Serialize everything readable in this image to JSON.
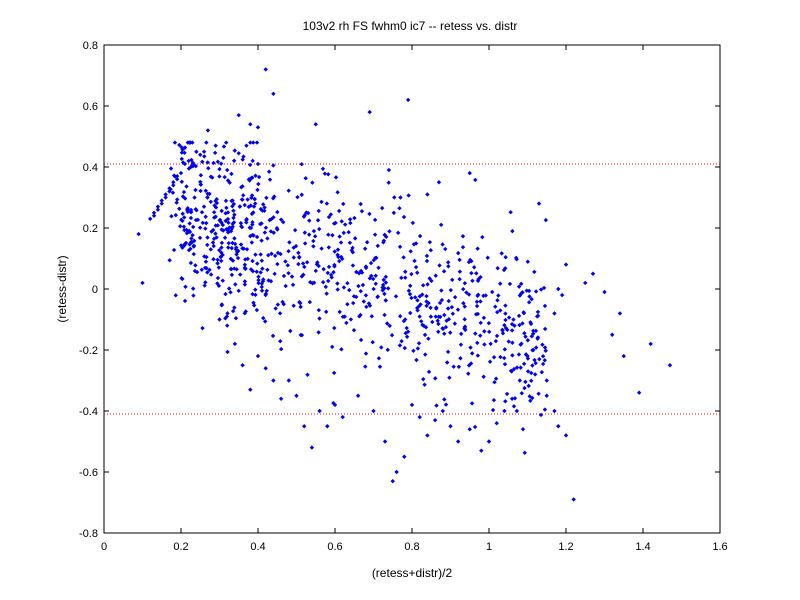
{
  "chart_data": {
    "type": "scatter",
    "title": "103v2 rh FS fwhm0 ic7 -- retess vs. distr",
    "xlabel": "(retess+distr)/2",
    "ylabel": "(retess-distr)",
    "xlim": [
      0,
      1.6
    ],
    "ylim": [
      -0.8,
      0.8
    ],
    "xticks": [
      "0",
      "0.2",
      "0.4",
      "0.6",
      "0.8",
      "1",
      "1.2",
      "1.4",
      "1.6"
    ],
    "yticks": [
      "0.8",
      "0.6",
      "0.4",
      "0.2",
      "0",
      "-0.2",
      "-0.4",
      "-0.6",
      "-0.8"
    ],
    "grid": false,
    "marker_color": "#0000ff",
    "reference_line_color": "#ff0000",
    "reference_lines_y": [
      0.41,
      -0.41
    ],
    "series": [
      {
        "name": "",
        "points": [
          [
            0.09,
            0.18
          ],
          [
            0.1,
            0.02
          ],
          [
            0.12,
            0.23
          ],
          [
            0.13,
            0.24
          ],
          [
            0.13,
            0.25
          ],
          [
            0.14,
            0.26
          ],
          [
            0.14,
            0.27
          ],
          [
            0.15,
            0.28
          ],
          [
            0.15,
            0.29
          ],
          [
            0.16,
            0.3
          ],
          [
            0.16,
            0.31
          ],
          [
            0.17,
            0.32
          ],
          [
            0.17,
            0.33
          ],
          [
            0.18,
            0.34
          ],
          [
            0.18,
            0.35
          ],
          [
            0.19,
            0.36
          ],
          [
            0.19,
            0.37
          ],
          [
            0.2,
            0.38
          ],
          [
            0.21,
            0.41
          ],
          [
            0.22,
            0.42
          ],
          [
            0.24,
            0.45
          ],
          [
            0.25,
            0.44
          ],
          [
            0.27,
            0.52
          ],
          [
            0.29,
            0.47
          ],
          [
            0.31,
            0.43
          ],
          [
            0.32,
            0.39
          ],
          [
            0.35,
            0.57
          ],
          [
            0.37,
            0.47
          ],
          [
            0.38,
            0.54
          ],
          [
            0.4,
            0.53
          ],
          [
            0.4,
            0.41
          ],
          [
            0.42,
            0.72
          ],
          [
            0.44,
            0.64
          ],
          [
            0.55,
            0.54
          ],
          [
            0.69,
            0.58
          ],
          [
            0.79,
            0.62
          ],
          [
            0.74,
            0.39
          ],
          [
            0.77,
            0.3
          ],
          [
            0.84,
            0.31
          ],
          [
            0.87,
            0.35
          ],
          [
            0.95,
            0.38
          ],
          [
            1.13,
            0.28
          ],
          [
            1.17,
            -0.08
          ],
          [
            1.18,
            0.0
          ],
          [
            1.19,
            -0.02
          ],
          [
            1.2,
            0.08
          ],
          [
            1.25,
            0.02
          ],
          [
            1.27,
            0.05
          ],
          [
            1.3,
            -0.01
          ],
          [
            1.32,
            -0.15
          ],
          [
            1.34,
            -0.08
          ],
          [
            1.35,
            -0.22
          ],
          [
            1.39,
            -0.34
          ],
          [
            1.42,
            -0.18
          ],
          [
            1.47,
            -0.25
          ],
          [
            1.15,
            -0.3
          ],
          [
            1.17,
            -0.4
          ],
          [
            1.18,
            -0.45
          ],
          [
            1.2,
            -0.48
          ],
          [
            1.22,
            -0.69
          ],
          [
            1.15,
            -0.35
          ],
          [
            1.12,
            -0.28
          ],
          [
            1.1,
            -0.22
          ],
          [
            1.08,
            -0.3
          ],
          [
            1.06,
            -0.36
          ],
          [
            1.04,
            -0.4
          ],
          [
            1.02,
            -0.44
          ],
          [
            1.0,
            -0.5
          ],
          [
            0.98,
            -0.53
          ],
          [
            0.95,
            -0.46
          ],
          [
            0.92,
            -0.5
          ],
          [
            0.9,
            -0.45
          ],
          [
            0.88,
            -0.4
          ],
          [
            0.86,
            -0.43
          ],
          [
            0.84,
            -0.48
          ],
          [
            0.82,
            -0.42
          ],
          [
            0.8,
            -0.38
          ],
          [
            0.78,
            -0.55
          ],
          [
            0.76,
            -0.6
          ],
          [
            0.75,
            -0.63
          ],
          [
            0.73,
            -0.5
          ],
          [
            0.7,
            -0.4
          ],
          [
            0.66,
            -0.35
          ],
          [
            0.62,
            -0.42
          ],
          [
            0.6,
            -0.38
          ],
          [
            0.58,
            -0.45
          ],
          [
            0.56,
            -0.4
          ],
          [
            0.54,
            -0.52
          ],
          [
            0.52,
            -0.45
          ],
          [
            0.5,
            -0.35
          ],
          [
            0.48,
            -0.3
          ],
          [
            0.46,
            -0.36
          ],
          [
            0.44,
            -0.3
          ],
          [
            0.42,
            -0.26
          ],
          [
            0.4,
            -0.22
          ],
          [
            0.38,
            -0.33
          ],
          [
            0.36,
            -0.25
          ],
          [
            0.34,
            -0.18
          ],
          [
            0.32,
            -0.12
          ],
          [
            0.3,
            -0.1
          ]
        ]
      }
    ]
  }
}
